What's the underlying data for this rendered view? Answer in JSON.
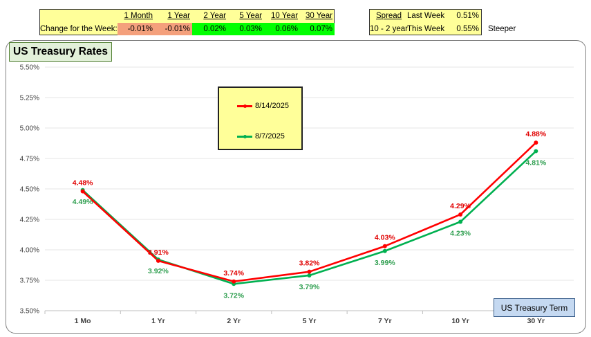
{
  "change_table": {
    "row_label": "Change for the Week:",
    "headers": [
      "1 Month",
      "1 Year",
      "2 Year",
      "5 Year",
      "10 Year",
      "30 Year"
    ],
    "values": [
      "-0.01%",
      "-0.01%",
      "0.02%",
      "0.03%",
      "0.06%",
      "0.07%"
    ],
    "colors": [
      "#f4a07c",
      "#f4a07c",
      "#00ff00",
      "#00ff00",
      "#00ff00",
      "#00ff00"
    ]
  },
  "spread_table": {
    "header": "Spread",
    "label": "10 - 2 year",
    "rows": [
      {
        "period": "Last Week",
        "value": "0.51%"
      },
      {
        "period": "This Week",
        "value": "0.55%"
      }
    ],
    "trend": "Steeper"
  },
  "chart_data": {
    "type": "line",
    "title": "US Treasury Rates",
    "xlabel": "US Treasury Term",
    "ylabel": "",
    "categories": [
      "1 Mo",
      "1 Yr",
      "2 Yr",
      "5 Yr",
      "7 Yr",
      "10 Yr",
      "30 Yr"
    ],
    "ylim": [
      3.5,
      5.5
    ],
    "ytick_labels": [
      "3.50%",
      "3.75%",
      "4.00%",
      "4.25%",
      "4.50%",
      "4.75%",
      "5.00%",
      "5.25%",
      "5.50%"
    ],
    "grid": true,
    "legend_position": "top-center",
    "series": [
      {
        "name": "8/14/2025",
        "color": "#ff0000",
        "label_color": "#e00000",
        "values": [
          4.48,
          3.91,
          3.74,
          3.82,
          4.03,
          4.29,
          4.88
        ],
        "labels": [
          "4.48%",
          "3.91%",
          "3.74%",
          "3.82%",
          "4.03%",
          "4.29%",
          "4.88%"
        ]
      },
      {
        "name": "8/7/2025",
        "color": "#00b050",
        "label_color": "#2e9e4f",
        "values": [
          4.49,
          3.92,
          3.72,
          3.79,
          3.99,
          4.23,
          4.81
        ],
        "labels": [
          "4.49%",
          "3.92%",
          "3.72%",
          "3.79%",
          "3.99%",
          "4.23%",
          "4.81%"
        ]
      }
    ]
  }
}
